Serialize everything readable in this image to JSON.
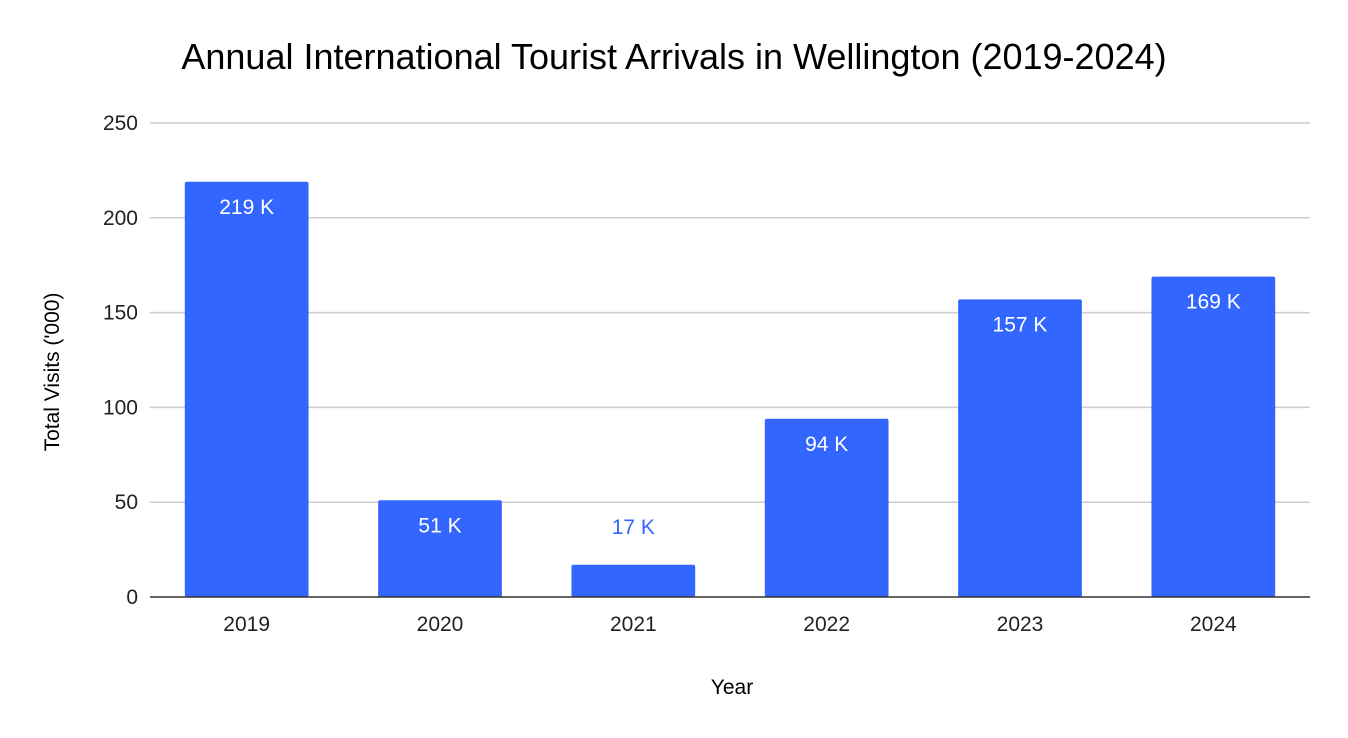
{
  "chart_data": {
    "type": "bar",
    "title": "Annual International Tourist Arrivals in Wellington (2019-2024)",
    "xlabel": "Year",
    "ylabel": "Total Visits ('000)",
    "categories": [
      "2019",
      "2020",
      "2021",
      "2022",
      "2023",
      "2024"
    ],
    "values": [
      219,
      51,
      17,
      94,
      157,
      169
    ],
    "data_labels": [
      "219 K",
      "51 K",
      "17 K",
      "94 K",
      "157 K",
      "169 K"
    ],
    "ylim": [
      0,
      250
    ],
    "yticks": [
      0,
      50,
      100,
      150,
      200,
      250
    ],
    "grid": true,
    "legend": "none",
    "colors": {
      "bar": "#3366ff",
      "label_inside": "#ffffff",
      "label_outside": "#3366ff",
      "grid": "#cccccc",
      "axis": "#333333"
    }
  }
}
